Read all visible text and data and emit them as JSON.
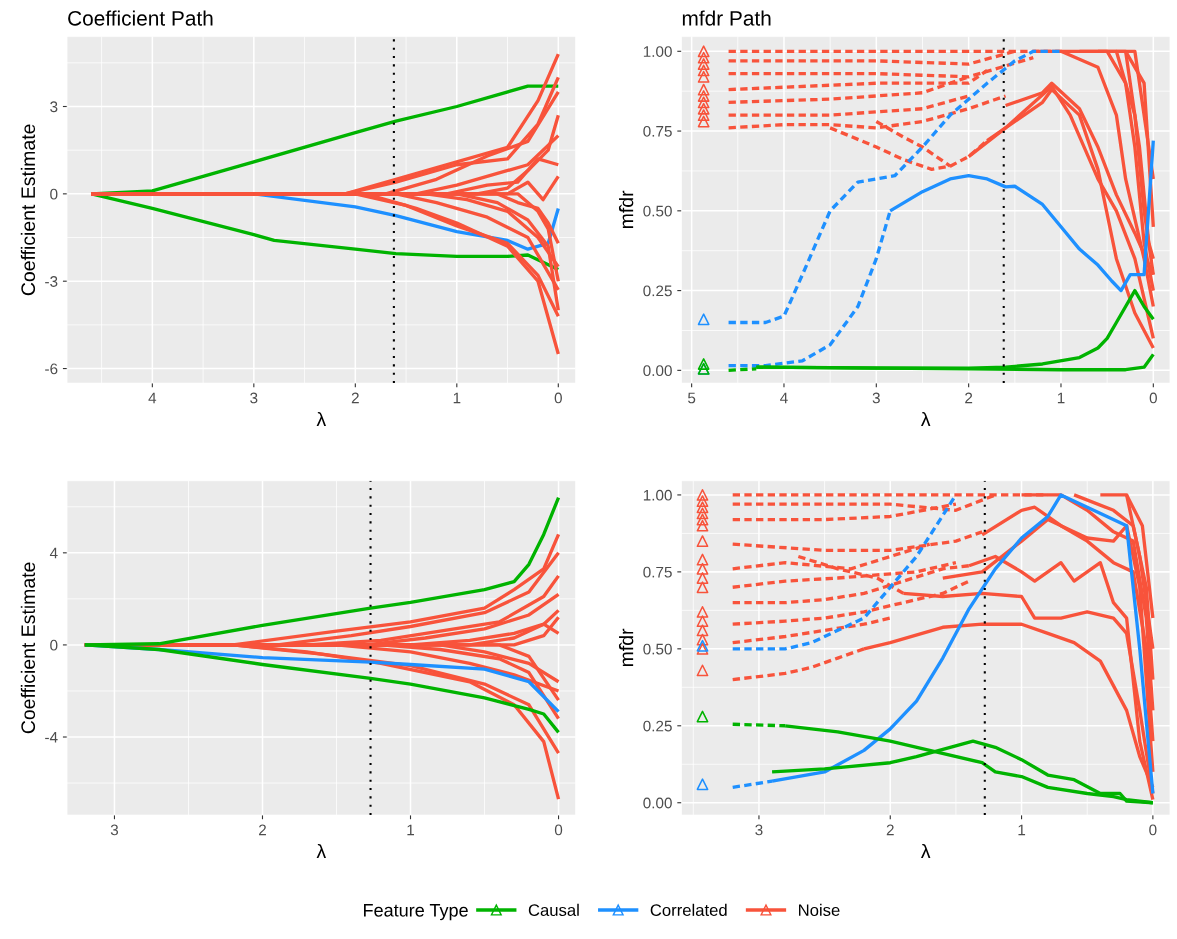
{
  "chart_data": [
    {
      "type": "line",
      "title": "Coefficient Path",
      "xlabel": "λ",
      "ylabel": "Coefficient Estimate",
      "legend": "bottom",
      "legend_title": "Feature Type",
      "xlim": [
        4.84,
        -0.17
      ],
      "xticks": [
        4,
        3,
        2,
        1,
        0
      ],
      "ylim": [
        -6.5,
        5.4
      ],
      "yticks": [
        -6,
        -3,
        0,
        3
      ],
      "grid": true,
      "line_style": "solid",
      "ref_lines": [
        {
          "axis": "x",
          "value": 1.62,
          "color": "#000000",
          "line_style": "dotted"
        }
      ],
      "series": [
        {
          "name": "Causal",
          "color": "#00b300",
          "x": [
            4.6,
            4,
            3,
            2,
            1.6,
            1,
            0.6,
            0.3,
            0
          ],
          "values": [
            0,
            0.1,
            1.1,
            2.1,
            2.5,
            3.0,
            3.4,
            3.7,
            3.7
          ]
        },
        {
          "color": "#00b300",
          "x": [
            4.6,
            4,
            3,
            2.8,
            2,
            1.6,
            1,
            0.5,
            0.3,
            0
          ],
          "values": [
            0,
            -0.5,
            -1.4,
            -1.6,
            -1.9,
            -2.05,
            -2.15,
            -2.15,
            -2.1,
            -2.6
          ]
        },
        {
          "name": "Correlated",
          "color": "#1e90ff",
          "x": [
            4.6,
            3,
            2,
            1.6,
            1,
            0.5,
            0.3,
            0.1,
            0
          ],
          "values": [
            0,
            0,
            -0.45,
            -0.75,
            -1.3,
            -1.6,
            -1.9,
            -1.7,
            -0.5
          ]
        },
        {
          "name": "Noise",
          "color": "#f8533b",
          "x": [
            4.6,
            2.1,
            1.6,
            1,
            0.5,
            0.2,
            0
          ],
          "values": [
            0,
            0,
            0.5,
            1.1,
            1.6,
            3.2,
            4.8
          ]
        },
        {
          "color": "#f8533b",
          "x": [
            4.6,
            2.1,
            1.6,
            1,
            0.5,
            0.2,
            0
          ],
          "values": [
            0,
            0,
            0.4,
            1.0,
            1.2,
            2.4,
            4.0
          ]
        },
        {
          "color": "#f8533b",
          "x": [
            4.6,
            2.0,
            1.5,
            1,
            0.5,
            0.2,
            0
          ],
          "values": [
            0,
            0,
            -0.4,
            -1.1,
            -1.7,
            -2.8,
            -4.2
          ]
        },
        {
          "color": "#f8533b",
          "x": [
            4.6,
            1.9,
            1.4,
            1,
            0.5,
            0.2,
            0
          ],
          "values": [
            0,
            0,
            -0.5,
            -1.0,
            -1.8,
            -3.0,
            -5.5
          ]
        },
        {
          "color": "#f8533b",
          "x": [
            4.6,
            1.7,
            1.2,
            0.7,
            0.3,
            0
          ],
          "values": [
            0,
            0,
            0.5,
            1.3,
            1.8,
            3.5
          ]
        },
        {
          "color": "#f8533b",
          "x": [
            4.6,
            1.6,
            1.2,
            0.7,
            0.3,
            0
          ],
          "values": [
            0,
            0,
            -0.3,
            -0.8,
            -1.5,
            -3.3
          ]
        },
        {
          "color": "#f8533b",
          "x": [
            4.6,
            1.4,
            1.0,
            0.6,
            0.3,
            0
          ],
          "values": [
            0,
            0,
            0.3,
            0.7,
            1.0,
            2.0
          ]
        },
        {
          "color": "#f8533b",
          "x": [
            4.6,
            1.3,
            0.9,
            0.5,
            0.2,
            0
          ],
          "values": [
            0,
            0,
            -0.2,
            -0.6,
            -1.5,
            -2.5
          ]
        },
        {
          "color": "#f8533b",
          "x": [
            4.6,
            1.1,
            0.7,
            0.4,
            0.2,
            0
          ],
          "values": [
            0,
            0,
            0.3,
            0.4,
            1.2,
            1.0
          ]
        },
        {
          "color": "#f8533b",
          "x": [
            4.6,
            1.0,
            0.6,
            0.3,
            0.1,
            0
          ],
          "values": [
            0,
            0,
            -0.3,
            -0.9,
            -1.8,
            -4.0
          ]
        },
        {
          "color": "#f8533b",
          "x": [
            4.6,
            0.8,
            0.5,
            0.3,
            0.1,
            0
          ],
          "values": [
            0,
            0,
            0.2,
            0.8,
            1.5,
            2.7
          ]
        },
        {
          "color": "#f8533b",
          "x": [
            4.6,
            0.6,
            0.4,
            0.2,
            0.1,
            0
          ],
          "values": [
            0,
            0,
            -0.3,
            -0.5,
            -1.0,
            -1.7
          ]
        },
        {
          "color": "#f8533b",
          "x": [
            4.6,
            0.5,
            0.3,
            0.15,
            0
          ],
          "values": [
            0,
            0,
            0.4,
            -0.2,
            0.6
          ]
        },
        {
          "color": "#f8533b",
          "x": [
            4.6,
            0.4,
            0.2,
            0.1,
            0
          ],
          "values": [
            0,
            0,
            -0.6,
            -1.2,
            -3.0
          ]
        }
      ]
    },
    {
      "type": "line",
      "title": "mfdr Path",
      "xlabel": "λ",
      "ylabel": "mf̂dr",
      "xlim": [
        5.11,
        -0.18
      ],
      "xticks": [
        5,
        4,
        3,
        2,
        1,
        0
      ],
      "ylim": [
        -0.04,
        1.046
      ],
      "yticks": [
        {
          "value": 0,
          "label": "0.00"
        },
        {
          "value": 0.25,
          "label": "0.25"
        },
        {
          "value": 0.5,
          "label": "0.50"
        },
        {
          "value": 0.75,
          "label": "0.75"
        },
        {
          "value": 1,
          "label": "1.00"
        }
      ],
      "grid": true,
      "line_style": "solid",
      "ref_lines": [
        {
          "axis": "x",
          "value": 1.62,
          "color": "#000000",
          "line_style": "dotted"
        }
      ],
      "series": [
        {
          "name": "Noise",
          "color": "#f8533b",
          "line_style": "dashed",
          "x": [
            4.6,
            1.0
          ],
          "values": [
            1.0,
            1.0
          ]
        },
        {
          "name": "Noise",
          "color": "#f8533b",
          "line_style": "dashed",
          "x": [
            4.6,
            3,
            2,
            1.5
          ],
          "values": [
            0.97,
            0.97,
            0.96,
            1.0
          ]
        },
        {
          "name": "Noise",
          "color": "#f8533b",
          "line_style": "dashed",
          "x": [
            4.6,
            3,
            2,
            1.3
          ],
          "values": [
            0.93,
            0.93,
            0.92,
            0.98
          ]
        },
        {
          "name": "Noise",
          "color": "#f8533b",
          "line_style": "dashed",
          "x": [
            4.6,
            3,
            2,
            1.8
          ],
          "values": [
            0.88,
            0.9,
            0.9,
            0.94
          ]
        },
        {
          "name": "Noise",
          "color": "#f8533b",
          "line_style": "dashed",
          "x": [
            4.6,
            3.5,
            2.5,
            2
          ],
          "values": [
            0.84,
            0.85,
            0.87,
            0.92
          ]
        },
        {
          "name": "Noise",
          "color": "#f8533b",
          "line_style": "dashed",
          "x": [
            4.6,
            3.5,
            2.5,
            2
          ],
          "values": [
            0.8,
            0.8,
            0.82,
            0.86
          ]
        },
        {
          "name": "Noise",
          "color": "#f8533b",
          "line_style": "dashed",
          "x": [
            4.6,
            4,
            3.5,
            3,
            2.5,
            2,
            1.6
          ],
          "values": [
            0.76,
            0.77,
            0.77,
            0.76,
            0.78,
            0.82,
            0.86
          ]
        },
        {
          "name": "Noise",
          "color": "#f8533b",
          "line_style": "dashed",
          "x": [
            3.5,
            3,
            2.7,
            2.4,
            2.2,
            2,
            1.8
          ],
          "values": [
            0.76,
            0.7,
            0.66,
            0.63,
            0.64,
            0.67,
            0.72
          ]
        },
        {
          "name": "Noise",
          "color": "#f8533b",
          "line_style": "dashed",
          "x": [
            3,
            2.7,
            2.5,
            2.2
          ],
          "values": [
            0.78,
            0.73,
            0.7,
            0.64
          ]
        },
        {
          "name": "Noise",
          "color": "#f8533b",
          "x": [
            1.8,
            1.6,
            1.2,
            1.1,
            0.8,
            0.6,
            0.4,
            0.2,
            0
          ],
          "values": [
            0.72,
            0.76,
            0.84,
            0.88,
            0.8,
            0.63,
            0.35,
            0.18,
            0.07
          ]
        },
        {
          "name": "Noise",
          "color": "#f8533b",
          "x": [
            2,
            1.6,
            1.1,
            0.9,
            0.6,
            0.4,
            0.2,
            0
          ],
          "values": [
            0.67,
            0.76,
            0.89,
            0.8,
            0.6,
            0.5,
            0.35,
            0.1
          ]
        },
        {
          "name": "Noise",
          "color": "#f8533b",
          "x": [
            1.6,
            1.2,
            1.1,
            0.8,
            0.6,
            0.4,
            0.2,
            0
          ],
          "values": [
            0.83,
            0.87,
            0.9,
            0.82,
            0.7,
            0.55,
            0.43,
            0.3
          ]
        },
        {
          "name": "Noise",
          "color": "#f8533b",
          "x": [
            1.3,
            1.0,
            0.6,
            0.4,
            0.3,
            0.1,
            0
          ],
          "values": [
            1.0,
            1.0,
            0.95,
            0.8,
            0.6,
            0.35,
            0.2
          ]
        },
        {
          "name": "Noise",
          "color": "#f8533b",
          "x": [
            1.0,
            0.5,
            0.3,
            0.2,
            0.1,
            0
          ],
          "values": [
            1.0,
            1.0,
            0.9,
            0.7,
            0.4,
            0.25
          ]
        },
        {
          "name": "Noise",
          "color": "#f8533b",
          "x": [
            0.8,
            0.4,
            0.2,
            0.1,
            0
          ],
          "values": [
            1.0,
            1.0,
            0.8,
            0.5,
            0.3
          ]
        },
        {
          "name": "Noise",
          "color": "#f8533b",
          "x": [
            0.6,
            0.3,
            0.15,
            0.05,
            0
          ],
          "values": [
            1.0,
            1.0,
            0.7,
            0.4,
            0.35
          ]
        },
        {
          "name": "Noise",
          "color": "#f8533b",
          "x": [
            0.4,
            0.2,
            0.1,
            0
          ],
          "values": [
            1.0,
            1.0,
            0.8,
            0.6
          ]
        },
        {
          "name": "Noise",
          "color": "#f8533b",
          "x": [
            0.3,
            0.1,
            0
          ],
          "values": [
            1.0,
            0.9,
            0.45
          ]
        },
        {
          "name": "Causal",
          "color": "#00b300",
          "line_style": "dashed",
          "x": [
            4.6,
            4.3
          ],
          "values": [
            0.0,
            0.005
          ]
        },
        {
          "name": "Correlated",
          "color": "#1e90ff",
          "line_style": "dashed",
          "x": [
            4.6,
            4.2,
            4,
            3.8,
            3.5,
            3.2,
            2.8,
            2.5,
            2.2,
            1.8,
            1.5,
            1.3,
            1.0
          ],
          "values": [
            0.15,
            0.15,
            0.17,
            0.3,
            0.5,
            0.59,
            0.61,
            0.7,
            0.8,
            0.9,
            0.97,
            1.0,
            1.0
          ]
        },
        {
          "name": "Correlated",
          "color": "#1e90ff",
          "line_style": "dashed",
          "x": [
            4.6,
            4.2,
            3.8,
            3.5,
            3.2,
            3,
            2.85
          ],
          "values": [
            0.015,
            0.015,
            0.03,
            0.08,
            0.2,
            0.35,
            0.5
          ]
        },
        {
          "name": "Correlated",
          "color": "#1e90ff",
          "x": [
            2.85,
            2.5,
            2.2,
            2,
            1.8,
            1.6,
            1.5,
            1.2,
            1,
            0.8,
            0.6,
            0.45,
            0.35,
            0.25,
            0.1,
            0
          ],
          "values": [
            0.5,
            0.56,
            0.6,
            0.61,
            0.6,
            0.575,
            0.577,
            0.52,
            0.45,
            0.38,
            0.33,
            0.28,
            0.25,
            0.3,
            0.3,
            0.72
          ]
        },
        {
          "name": "Causal",
          "color": "#00b300",
          "x": [
            4.3,
            3,
            2,
            1.6,
            1.2,
            0.8,
            0.6,
            0.5,
            0.4,
            0.3,
            0.2,
            0.1,
            0
          ],
          "values": [
            0.01,
            0.007,
            0.007,
            0.01,
            0.02,
            0.04,
            0.07,
            0.1,
            0.15,
            0.2,
            0.25,
            0.2,
            0.16
          ]
        },
        {
          "name": "Causal",
          "color": "#00b300",
          "x": [
            4.3,
            2,
            1,
            0.3,
            0.1,
            0
          ],
          "values": [
            0.01,
            0.005,
            0.002,
            0.002,
            0.01,
            0.05
          ]
        },
        {
          "name": "Noise",
          "type": "scatter",
          "marker": "triangle",
          "color": "#f8533b",
          "x": [
            4.87,
            4.87,
            4.87,
            4.87,
            4.87,
            4.87,
            4.87,
            4.87,
            4.87,
            4.87,
            4.87
          ],
          "values": [
            1.0,
            0.98,
            0.96,
            0.94,
            0.92,
            0.88,
            0.86,
            0.84,
            0.82,
            0.8,
            0.78
          ]
        },
        {
          "name": "Correlated",
          "type": "scatter",
          "marker": "triangle",
          "color": "#1e90ff",
          "x": [
            4.87,
            4.87
          ],
          "values": [
            0.16,
            0.005
          ]
        },
        {
          "name": "Causal",
          "type": "scatter",
          "marker": "triangle",
          "color": "#00b300",
          "x": [
            4.87,
            4.87
          ],
          "values": [
            0.02,
            0.005
          ]
        }
      ]
    },
    {
      "type": "line",
      "xlabel": "λ",
      "ylabel": "Coefficient Estimate",
      "xlim": [
        3.32,
        -0.115
      ],
      "xticks": [
        3,
        2,
        1,
        0
      ],
      "ylim": [
        -7.39,
        7.13
      ],
      "yticks": [
        -4,
        0,
        4
      ],
      "grid": true,
      "line_style": "solid",
      "ref_lines": [
        {
          "axis": "x",
          "value": 1.27,
          "color": "#000000",
          "line_style": "dotted"
        }
      ],
      "series": [
        {
          "name": "Noise",
          "color": "#f8533b",
          "x": [
            3.2,
            2.2,
            1.5,
            1,
            0.5,
            0.3,
            0.1,
            0
          ],
          "values": [
            0,
            0,
            0.6,
            1.0,
            1.6,
            2.4,
            3.3,
            4.8
          ]
        },
        {
          "name": "Noise",
          "color": "#f8533b",
          "x": [
            3.2,
            2.2,
            1.6,
            1,
            0.5,
            0.2,
            0
          ],
          "values": [
            0,
            0,
            -0.4,
            -0.9,
            -1.7,
            -2.6,
            -4.7
          ]
        },
        {
          "name": "Noise",
          "color": "#f8533b",
          "x": [
            3.2,
            2.2,
            1.7,
            1.2,
            0.6,
            0.3,
            0.1,
            0
          ],
          "values": [
            0,
            0,
            -0.3,
            -0.8,
            -1.6,
            -2.6,
            -4.2,
            -6.7
          ]
        },
        {
          "name": "Noise",
          "color": "#f8533b",
          "x": [
            3.2,
            1.9,
            1.4,
            1,
            0.5,
            0.2,
            0
          ],
          "values": [
            0,
            0,
            0.4,
            0.8,
            1.4,
            2.3,
            4.0
          ]
        },
        {
          "name": "Noise",
          "color": "#f8533b",
          "x": [
            3.2,
            1.7,
            1.2,
            0.8,
            0.4,
            0.1,
            0
          ],
          "values": [
            0,
            0,
            0.2,
            0.6,
            1.0,
            2.1,
            3.0
          ]
        },
        {
          "name": "Noise",
          "color": "#f8533b",
          "x": [
            3.2,
            1.5,
            1,
            0.6,
            0.3,
            0
          ],
          "values": [
            0,
            0,
            -0.3,
            -0.8,
            -1.3,
            -2.0
          ]
        },
        {
          "name": "Noise",
          "color": "#f8533b",
          "x": [
            3.2,
            1.3,
            0.9,
            0.5,
            0.2,
            0
          ],
          "values": [
            0,
            0,
            0.3,
            0.7,
            1.3,
            2.2
          ]
        },
        {
          "name": "Noise",
          "color": "#f8533b",
          "x": [
            3.2,
            1.2,
            0.8,
            0.4,
            0.2,
            0
          ],
          "values": [
            0,
            0,
            -0.2,
            -0.6,
            -1.2,
            -3.2
          ]
        },
        {
          "name": "Noise",
          "color": "#f8533b",
          "x": [
            3.2,
            1.0,
            0.6,
            0.3,
            0.1,
            0
          ],
          "values": [
            0,
            0,
            0.2,
            0.5,
            0.9,
            1.5
          ]
        },
        {
          "name": "Noise",
          "color": "#f8533b",
          "x": [
            3.2,
            0.8,
            0.5,
            0.2,
            0
          ],
          "values": [
            0,
            0,
            -0.3,
            -0.8,
            -1.6
          ]
        },
        {
          "name": "Noise",
          "color": "#f8533b",
          "x": [
            3.2,
            0.6,
            0.3,
            0.1,
            0
          ],
          "values": [
            0,
            0,
            0.3,
            0.9,
            0.5
          ]
        },
        {
          "name": "Noise",
          "color": "#f8533b",
          "x": [
            3.2,
            0.4,
            0.2,
            0
          ],
          "values": [
            0,
            0,
            -0.5,
            -2.4
          ]
        },
        {
          "name": "Noise",
          "color": "#f8533b",
          "x": [
            3.2,
            0.3,
            0.1,
            0
          ],
          "values": [
            0,
            0,
            0.4,
            1.2
          ]
        },
        {
          "name": "Correlated",
          "color": "#1e90ff",
          "x": [
            3.2,
            2.7,
            2,
            1.27,
            1,
            0.5,
            0.2,
            0
          ],
          "values": [
            0,
            -0.2,
            -0.55,
            -0.75,
            -0.85,
            -1.05,
            -1.6,
            -2.9
          ]
        },
        {
          "name": "Causal",
          "color": "#00b300",
          "x": [
            3.2,
            2.7,
            2,
            1.27,
            1,
            0.5,
            0.3,
            0.2,
            0.1,
            0
          ],
          "values": [
            0,
            0.05,
            0.85,
            1.6,
            1.85,
            2.4,
            2.75,
            3.5,
            4.8,
            6.4
          ]
        },
        {
          "name": "Causal",
          "color": "#00b300",
          "x": [
            3.2,
            2.7,
            2,
            1.27,
            1,
            0.5,
            0.2,
            0.1,
            0
          ],
          "values": [
            0,
            -0.2,
            -0.85,
            -1.45,
            -1.7,
            -2.3,
            -2.8,
            -3.0,
            -3.8
          ]
        }
      ]
    },
    {
      "type": "line",
      "xlabel": "λ",
      "ylabel": "mf̂dr",
      "xlim": [
        3.59,
        -0.13
      ],
      "xticks": [
        3,
        2,
        1,
        0
      ],
      "ylim": [
        -0.04,
        1.046
      ],
      "yticks": [
        {
          "value": 0,
          "label": "0.00"
        },
        {
          "value": 0.25,
          "label": "0.25"
        },
        {
          "value": 0.5,
          "label": "0.50"
        },
        {
          "value": 0.75,
          "label": "0.75"
        },
        {
          "value": 1,
          "label": "1.00"
        }
      ],
      "grid": true,
      "line_style": "solid",
      "ref_lines": [
        {
          "axis": "x",
          "value": 1.28,
          "color": "#000000",
          "line_style": "dotted"
        }
      ],
      "series": [
        {
          "name": "Noise",
          "color": "#f8533b",
          "line_style": "dashed",
          "x": [
            3.2,
            0.8
          ],
          "values": [
            1.0,
            1.0
          ]
        },
        {
          "name": "Noise",
          "color": "#f8533b",
          "line_style": "dashed",
          "x": [
            3.2,
            2,
            1.5,
            1.2
          ],
          "values": [
            0.97,
            0.97,
            0.95,
            1.0
          ]
        },
        {
          "name": "Noise",
          "color": "#f8533b",
          "line_style": "dashed",
          "x": [
            3.2,
            2.5,
            2,
            1.5
          ],
          "values": [
            0.92,
            0.92,
            0.93,
            0.97
          ]
        },
        {
          "name": "Noise",
          "color": "#f8533b",
          "line_style": "dashed",
          "x": [
            3.2,
            2.5,
            2,
            1.5,
            1.3
          ],
          "values": [
            0.84,
            0.82,
            0.82,
            0.85,
            0.88
          ]
        },
        {
          "name": "Noise",
          "color": "#f8533b",
          "line_style": "dashed",
          "x": [
            3.2,
            2.8,
            2.3,
            2,
            1.7
          ],
          "values": [
            0.76,
            0.78,
            0.76,
            0.8,
            0.84
          ]
        },
        {
          "name": "Noise",
          "color": "#f8533b",
          "line_style": "dashed",
          "x": [
            3.2,
            2.8,
            2.4,
            2.1,
            1.8,
            1.5
          ],
          "values": [
            0.7,
            0.72,
            0.73,
            0.74,
            0.75,
            0.78
          ]
        },
        {
          "name": "Noise",
          "color": "#f8533b",
          "line_style": "dashed",
          "x": [
            3.2,
            2.8,
            2.5,
            2.2,
            1.9,
            1.6,
            1.4
          ],
          "values": [
            0.65,
            0.65,
            0.66,
            0.68,
            0.72,
            0.76,
            0.77
          ]
        },
        {
          "name": "Noise",
          "color": "#f8533b",
          "line_style": "dashed",
          "x": [
            3.2,
            2.8,
            2.5,
            2.2,
            1.9,
            1.6,
            1.4
          ],
          "values": [
            0.58,
            0.59,
            0.6,
            0.62,
            0.65,
            0.68,
            0.72
          ]
        },
        {
          "name": "Noise",
          "color": "#f8533b",
          "line_style": "dashed",
          "x": [
            3.2,
            2.8,
            2.5,
            2.2,
            2.0
          ],
          "values": [
            0.52,
            0.54,
            0.56,
            0.58,
            0.6
          ]
        },
        {
          "name": "Noise",
          "color": "#f8533b",
          "line_style": "dashed",
          "x": [
            3.2,
            2.8,
            2.6,
            2.4,
            2.2
          ],
          "values": [
            0.4,
            0.42,
            0.44,
            0.47,
            0.5
          ]
        },
        {
          "name": "Noise",
          "color": "#f8533b",
          "line_style": "dashed",
          "x": [
            2.7,
            2.4,
            2.1,
            1.9
          ],
          "values": [
            0.8,
            0.76,
            0.73,
            0.68
          ]
        },
        {
          "name": "Noise",
          "color": "#f8533b",
          "x": [
            2.2,
            2.0,
            1.6,
            1.3,
            1.0,
            0.8,
            0.6,
            0.4,
            0.2,
            0.1,
            0
          ],
          "values": [
            0.5,
            0.52,
            0.57,
            0.58,
            0.58,
            0.55,
            0.52,
            0.46,
            0.3,
            0.15,
            0.05
          ]
        },
        {
          "name": "Noise",
          "color": "#f8533b",
          "x": [
            1.9,
            1.6,
            1.3,
            1.0,
            0.9,
            0.7,
            0.5,
            0.3,
            0.2,
            0.1,
            0
          ],
          "values": [
            0.68,
            0.67,
            0.68,
            0.67,
            0.6,
            0.6,
            0.62,
            0.6,
            0.55,
            0.3,
            0.03
          ]
        },
        {
          "name": "Noise",
          "color": "#f8533b",
          "x": [
            1.4,
            1.2,
            1.0,
            0.9,
            0.7,
            0.6,
            0.4,
            0.3,
            0.2,
            0.1,
            0
          ],
          "values": [
            0.77,
            0.8,
            0.75,
            0.72,
            0.78,
            0.72,
            0.78,
            0.65,
            0.6,
            0.2,
            0.01
          ]
        },
        {
          "name": "Noise",
          "color": "#f8533b",
          "x": [
            1.6,
            1.3,
            1.0,
            0.8,
            0.7,
            0.5,
            0.3,
            0.2,
            0.1,
            0
          ],
          "values": [
            0.73,
            0.75,
            0.85,
            0.92,
            0.9,
            0.86,
            0.85,
            0.9,
            0.7,
            0.1
          ]
        },
        {
          "name": "Noise",
          "color": "#f8533b",
          "x": [
            1.3,
            1.0,
            0.9,
            0.7,
            0.5,
            0.3,
            0.15,
            0.05,
            0
          ],
          "values": [
            0.87,
            0.95,
            0.96,
            0.9,
            0.85,
            0.78,
            0.75,
            0.5,
            0.2
          ]
        },
        {
          "name": "Noise",
          "color": "#f8533b",
          "x": [
            1.0,
            0.7,
            0.5,
            0.3,
            0.15,
            0.05,
            0
          ],
          "values": [
            1.0,
            1.0,
            0.95,
            0.88,
            0.85,
            0.6,
            0.3
          ]
        },
        {
          "name": "Noise",
          "color": "#f8533b",
          "x": [
            0.6,
            0.3,
            0.15,
            0.05,
            0
          ],
          "values": [
            1.0,
            0.95,
            0.9,
            0.7,
            0.4
          ]
        },
        {
          "name": "Noise",
          "color": "#f8533b",
          "x": [
            0.4,
            0.2,
            0.1,
            0
          ],
          "values": [
            1.0,
            1.0,
            0.8,
            0.5
          ]
        },
        {
          "name": "Noise",
          "color": "#f8533b",
          "x": [
            0.2,
            0.08,
            0
          ],
          "values": [
            1.0,
            0.9,
            0.6
          ]
        },
        {
          "name": "Correlated",
          "color": "#1e90ff",
          "line_style": "dashed",
          "x": [
            3.2,
            2.8,
            2.6,
            2.2,
            2,
            1.8,
            1.5
          ],
          "values": [
            0.5,
            0.5,
            0.52,
            0.6,
            0.7,
            0.8,
            1.0
          ]
        },
        {
          "name": "Correlated",
          "color": "#1e90ff",
          "line_style": "dashed",
          "x": [
            3.2,
            2.9
          ],
          "values": [
            0.05,
            0.07
          ]
        },
        {
          "name": "Correlated",
          "color": "#1e90ff",
          "x": [
            2.9,
            2.5,
            2.2,
            2,
            1.8,
            1.6,
            1.4,
            1.2,
            1,
            0.8,
            0.7,
            0.2,
            0.1,
            0
          ],
          "values": [
            0.07,
            0.1,
            0.17,
            0.24,
            0.33,
            0.47,
            0.63,
            0.76,
            0.86,
            0.93,
            1.0,
            0.9,
            0.5,
            0.03
          ]
        },
        {
          "name": "Causal",
          "color": "#00b300",
          "line_style": "dashed",
          "x": [
            3.2,
            2.8
          ],
          "values": [
            0.255,
            0.25
          ]
        },
        {
          "name": "Causal",
          "color": "#00b300",
          "x": [
            2.8,
            2.4,
            2,
            1.7,
            1.3,
            1.2,
            1,
            0.8,
            0.5,
            0.3,
            0.2,
            0
          ],
          "values": [
            0.25,
            0.23,
            0.2,
            0.17,
            0.13,
            0.1,
            0.085,
            0.05,
            0.03,
            0.02,
            0.01,
            0
          ]
        },
        {
          "name": "Causal",
          "color": "#00b300",
          "x": [
            2.9,
            2.5,
            2,
            1.8,
            1.37,
            1.2,
            1,
            0.8,
            0.6,
            0.4,
            0.25,
            0.2,
            0
          ],
          "values": [
            0.1,
            0.11,
            0.13,
            0.15,
            0.2,
            0.18,
            0.14,
            0.09,
            0.075,
            0.03,
            0.03,
            0.005,
            0
          ]
        },
        {
          "name": "Noise",
          "type": "scatter",
          "marker": "triangle",
          "color": "#f8533b",
          "x": [
            3.43,
            3.43,
            3.43,
            3.43,
            3.43,
            3.43,
            3.43,
            3.43,
            3.43,
            3.43,
            3.43,
            3.43,
            3.43,
            3.43,
            3.43,
            3.43,
            3.43
          ],
          "values": [
            1.0,
            0.98,
            0.96,
            0.94,
            0.92,
            0.9,
            0.85,
            0.79,
            0.76,
            0.73,
            0.7,
            0.62,
            0.59,
            0.56,
            0.53,
            0.5,
            0.43
          ]
        },
        {
          "name": "Correlated",
          "type": "scatter",
          "marker": "triangle",
          "color": "#1e90ff",
          "x": [
            3.43,
            3.43
          ],
          "values": [
            0.51,
            0.06
          ]
        },
        {
          "name": "Causal",
          "type": "scatter",
          "marker": "triangle",
          "color": "#00b300",
          "x": [
            3.43
          ],
          "values": [
            0.28
          ]
        }
      ]
    }
  ]
}
